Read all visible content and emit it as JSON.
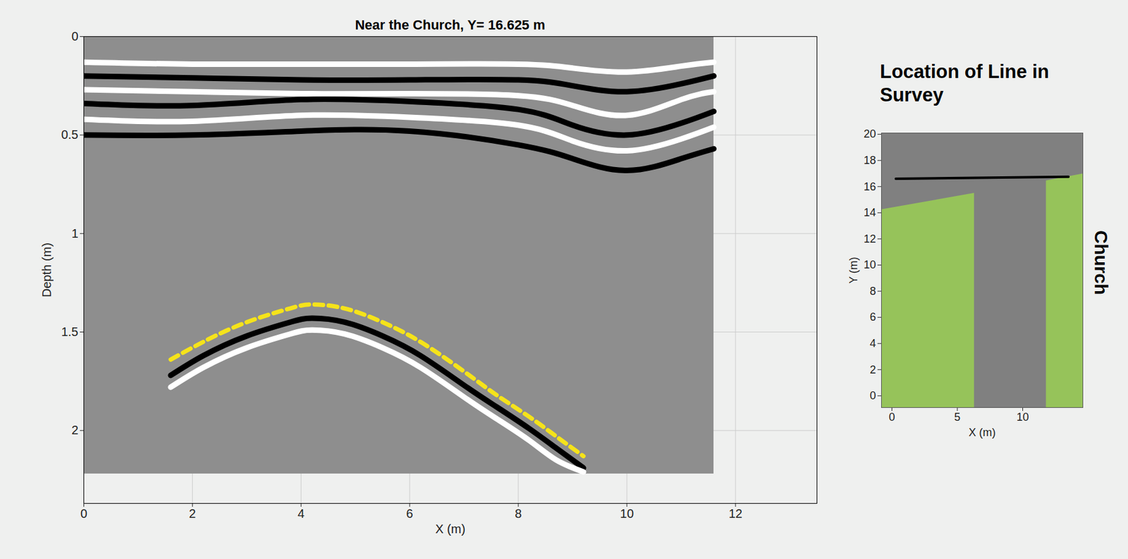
{
  "chart_data": [
    {
      "type": "radargram",
      "title": "Near the Church, Y= 16.625 m",
      "x_label": "X (m)",
      "y_label": "Depth (m)",
      "xlim": [
        0,
        13.5
      ],
      "ylim": [
        0,
        2.37
      ],
      "xticks": [
        0,
        2,
        4,
        6,
        8,
        10,
        12
      ],
      "yticks": [
        0,
        0.5,
        1,
        1.5,
        2
      ],
      "grid": true,
      "color": "#8e8e8e",
      "data_extent": {
        "x": [
          0,
          11.6
        ],
        "depth": [
          0,
          2.22
        ]
      },
      "series": [
        {
          "color": "#ffffff",
          "line_style": "solid",
          "x": [
            0,
            2,
            4,
            6,
            8,
            9,
            10,
            11,
            11.6
          ],
          "values": [
            0.13,
            0.14,
            0.14,
            0.14,
            0.14,
            0.16,
            0.18,
            0.15,
            0.13
          ]
        },
        {
          "color": "#000000",
          "line_style": "solid",
          "x": [
            0,
            2,
            4,
            6,
            8,
            9,
            10,
            11,
            11.6
          ],
          "values": [
            0.2,
            0.21,
            0.22,
            0.22,
            0.22,
            0.25,
            0.28,
            0.24,
            0.2
          ]
        },
        {
          "color": "#ffffff",
          "line_style": "solid",
          "x": [
            0,
            2,
            4,
            6,
            8,
            9,
            10,
            11,
            11.6
          ],
          "values": [
            0.27,
            0.28,
            0.29,
            0.29,
            0.3,
            0.35,
            0.4,
            0.32,
            0.28
          ]
        },
        {
          "color": "#000000",
          "line_style": "solid",
          "x": [
            0,
            2,
            4,
            6,
            8,
            9,
            10,
            11,
            11.6
          ],
          "values": [
            0.34,
            0.35,
            0.32,
            0.33,
            0.37,
            0.45,
            0.5,
            0.44,
            0.38
          ]
        },
        {
          "color": "#ffffff",
          "line_style": "solid",
          "x": [
            0,
            2,
            4,
            6,
            8,
            9,
            10,
            11,
            11.6
          ],
          "values": [
            0.42,
            0.43,
            0.4,
            0.41,
            0.45,
            0.53,
            0.58,
            0.52,
            0.46
          ]
        },
        {
          "color": "#000000",
          "line_style": "solid",
          "x": [
            0,
            2,
            4,
            6,
            8,
            9,
            10,
            11,
            11.6
          ],
          "values": [
            0.5,
            0.5,
            0.48,
            0.48,
            0.55,
            0.62,
            0.68,
            0.62,
            0.57
          ]
        },
        {
          "color": "#000000",
          "line_style": "solid",
          "x": [
            1.6,
            2.2,
            3,
            3.8,
            4.2,
            4.8,
            5.5,
            6.2,
            7,
            7.6,
            8.2,
            8.7,
            9.2
          ],
          "values": [
            1.72,
            1.62,
            1.52,
            1.45,
            1.43,
            1.45,
            1.52,
            1.62,
            1.77,
            1.88,
            1.99,
            2.09,
            2.19
          ]
        },
        {
          "color": "#ffffff",
          "line_style": "solid",
          "x": [
            1.6,
            2.2,
            3,
            3.8,
            4.2,
            4.8,
            5.5,
            6.2,
            7,
            7.6,
            8.2,
            8.7,
            9.2
          ],
          "values": [
            1.78,
            1.68,
            1.58,
            1.51,
            1.49,
            1.51,
            1.58,
            1.68,
            1.83,
            1.94,
            2.05,
            2.15,
            2.21
          ]
        },
        {
          "color": "#f5e31a",
          "line_style": "dashed",
          "x": [
            1.6,
            2.2,
            3,
            3.8,
            4.2,
            4.8,
            5.5,
            6.2,
            7,
            7.6,
            8.2,
            8.7,
            9.2
          ],
          "values": [
            1.64,
            1.55,
            1.45,
            1.38,
            1.36,
            1.38,
            1.45,
            1.55,
            1.7,
            1.82,
            1.93,
            2.03,
            2.13
          ]
        }
      ]
    },
    {
      "type": "map",
      "title": "Location of Line in Survey",
      "x_label": "X (m)",
      "y_label": "Y (m)",
      "xlim": [
        -0.8,
        14.6
      ],
      "ylim": [
        -0.9,
        20.1
      ],
      "xticks": [
        0,
        5,
        10
      ],
      "yticks": [
        0,
        2,
        4,
        6,
        8,
        10,
        12,
        14,
        16,
        18,
        20
      ],
      "grid": false,
      "color": "#808080",
      "areas": [
        {
          "color": "#96c35a",
          "x": [
            -1,
            6.3
          ],
          "y_top": [
            14.2,
            15.5
          ]
        },
        {
          "color": "#96c35a",
          "x": [
            11.8,
            15
          ],
          "y_top": [
            16.45,
            17.05
          ]
        }
      ],
      "series": [
        {
          "color": "#000000",
          "line_style": "solid",
          "x": [
            0.3,
            13.5
          ],
          "values": [
            16.6,
            16.75
          ]
        }
      ],
      "annotations": [
        "Church"
      ]
    }
  ]
}
